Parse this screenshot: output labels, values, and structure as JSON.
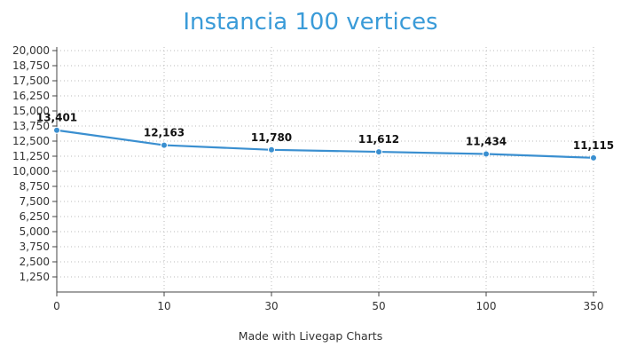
{
  "chart_data": {
    "type": "line",
    "title": "Instancia 100 vertices",
    "xlabel": "",
    "ylabel": "",
    "categories": [
      "0",
      "10",
      "30",
      "50",
      "100",
      "350"
    ],
    "series": [
      {
        "values": [
          13401,
          12163,
          11780,
          11612,
          11434,
          11115
        ],
        "labels": [
          "13,401",
          "12,163",
          "11,780",
          "11,612",
          "11,434",
          "11,115"
        ]
      }
    ],
    "ylim": [
      0,
      20000
    ],
    "yticks": [
      1250,
      2500,
      3750,
      5000,
      6250,
      7500,
      8750,
      10000,
      11250,
      12500,
      13750,
      15000,
      16250,
      17500,
      18750,
      20000
    ],
    "ytick_labels": [
      "1,250",
      "2,500",
      "3,750",
      "5,000",
      "6,250",
      "7,500",
      "8,750",
      "10,000",
      "11,250",
      "12,500",
      "13,750",
      "15,000",
      "16,250",
      "17,500",
      "18,750",
      "20,000"
    ],
    "grid": true,
    "line_color": "#3a8fd0",
    "grid_color": "#bbbbbb",
    "axis_color": "#444444"
  },
  "footer": "Made with Livegap Charts"
}
